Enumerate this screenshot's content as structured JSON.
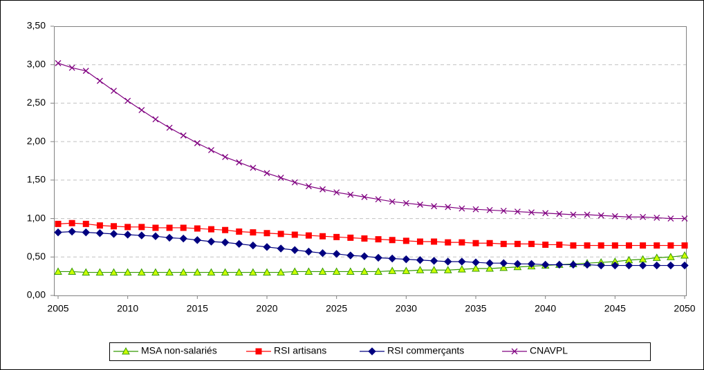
{
  "chart_data": {
    "type": "line",
    "x": [
      2005,
      2006,
      2007,
      2008,
      2009,
      2010,
      2011,
      2012,
      2013,
      2014,
      2015,
      2016,
      2017,
      2018,
      2019,
      2020,
      2021,
      2022,
      2023,
      2024,
      2025,
      2026,
      2027,
      2028,
      2029,
      2030,
      2031,
      2032,
      2033,
      2034,
      2035,
      2036,
      2037,
      2038,
      2039,
      2040,
      2041,
      2042,
      2043,
      2044,
      2045,
      2046,
      2047,
      2048,
      2049,
      2050
    ],
    "series": [
      {
        "name": "MSA non-salariés",
        "color": "#339900",
        "marker": "triangle",
        "marker_fill": "#ccff00",
        "values": [
          0.31,
          0.31,
          0.3,
          0.3,
          0.3,
          0.3,
          0.3,
          0.3,
          0.3,
          0.3,
          0.3,
          0.3,
          0.3,
          0.3,
          0.3,
          0.3,
          0.3,
          0.31,
          0.31,
          0.31,
          0.31,
          0.31,
          0.31,
          0.31,
          0.32,
          0.32,
          0.33,
          0.33,
          0.33,
          0.34,
          0.35,
          0.35,
          0.36,
          0.37,
          0.38,
          0.39,
          0.4,
          0.41,
          0.42,
          0.43,
          0.44,
          0.46,
          0.47,
          0.49,
          0.5,
          0.52
        ]
      },
      {
        "name": "RSI artisans",
        "color": "#ff0000",
        "marker": "square",
        "marker_fill": "#ff0000",
        "values": [
          0.93,
          0.94,
          0.93,
          0.91,
          0.9,
          0.89,
          0.89,
          0.88,
          0.88,
          0.88,
          0.87,
          0.86,
          0.85,
          0.83,
          0.82,
          0.81,
          0.8,
          0.79,
          0.78,
          0.77,
          0.76,
          0.75,
          0.74,
          0.73,
          0.72,
          0.71,
          0.7,
          0.7,
          0.69,
          0.69,
          0.68,
          0.68,
          0.67,
          0.67,
          0.67,
          0.66,
          0.66,
          0.65,
          0.65,
          0.65,
          0.65,
          0.65,
          0.65,
          0.65,
          0.65,
          0.65
        ]
      },
      {
        "name": "RSI commerçants",
        "color": "#000080",
        "marker": "diamond",
        "marker_fill": "#000080",
        "values": [
          0.82,
          0.83,
          0.82,
          0.81,
          0.8,
          0.79,
          0.78,
          0.77,
          0.75,
          0.74,
          0.72,
          0.7,
          0.69,
          0.67,
          0.65,
          0.63,
          0.61,
          0.59,
          0.57,
          0.55,
          0.54,
          0.52,
          0.51,
          0.49,
          0.48,
          0.47,
          0.46,
          0.45,
          0.44,
          0.44,
          0.43,
          0.42,
          0.42,
          0.41,
          0.41,
          0.4,
          0.4,
          0.4,
          0.4,
          0.39,
          0.39,
          0.39,
          0.39,
          0.39,
          0.39,
          0.39
        ]
      },
      {
        "name": "CNAVPL",
        "color": "#800080",
        "marker": "x",
        "marker_fill": "none",
        "values": [
          3.02,
          2.96,
          2.92,
          2.79,
          2.66,
          2.53,
          2.41,
          2.29,
          2.18,
          2.08,
          1.98,
          1.89,
          1.8,
          1.73,
          1.66,
          1.59,
          1.53,
          1.47,
          1.42,
          1.38,
          1.34,
          1.31,
          1.28,
          1.25,
          1.22,
          1.2,
          1.18,
          1.16,
          1.15,
          1.13,
          1.12,
          1.11,
          1.1,
          1.09,
          1.08,
          1.07,
          1.06,
          1.05,
          1.05,
          1.04,
          1.03,
          1.02,
          1.02,
          1.01,
          1.0,
          1.0
        ]
      }
    ],
    "xlim": [
      2005,
      2050
    ],
    "xticks": [
      2005,
      2010,
      2015,
      2020,
      2025,
      2030,
      2035,
      2040,
      2045,
      2050
    ],
    "ylim": [
      0,
      3.5
    ],
    "yticks": [
      {
        "value": 0,
        "label": "0,00"
      },
      {
        "value": 0.5,
        "label": "0,50"
      },
      {
        "value": 1,
        "label": "1,00"
      },
      {
        "value": 1.5,
        "label": "1,50"
      },
      {
        "value": 2,
        "label": "2,00"
      },
      {
        "value": 2.5,
        "label": "2,50"
      },
      {
        "value": 3,
        "label": "3,00"
      },
      {
        "value": 3.5,
        "label": "3,50"
      }
    ],
    "grid": true,
    "legend": "bottom"
  }
}
